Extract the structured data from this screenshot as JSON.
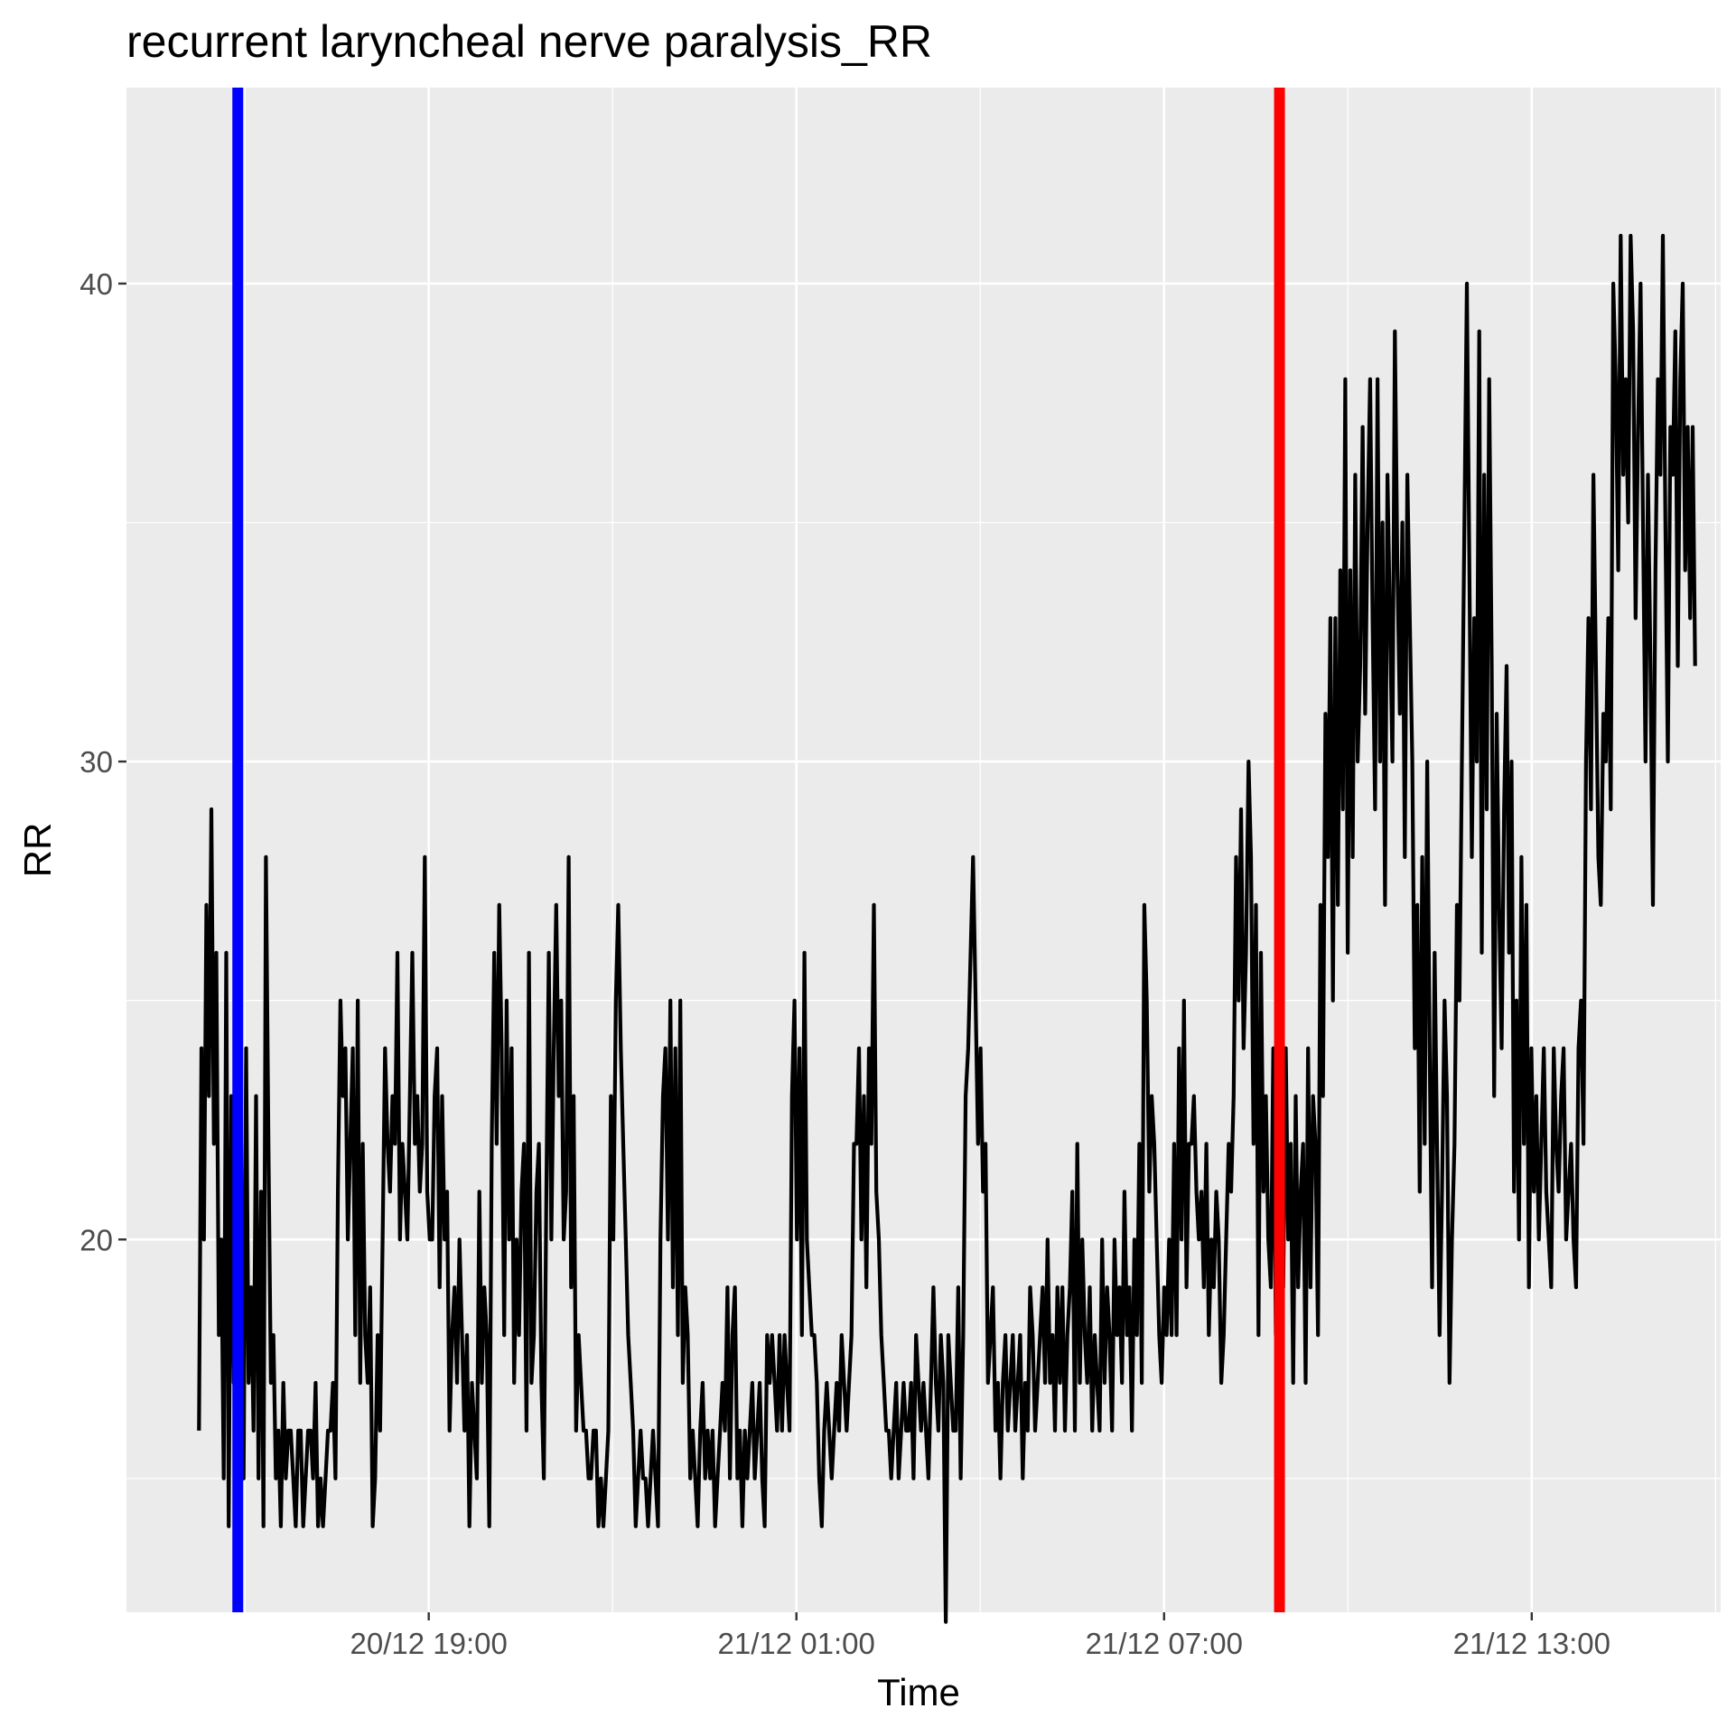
{
  "chart_data": {
    "type": "line",
    "title": "recurrent laryncheal nerve paralysis_RR",
    "xlabel": "Time",
    "ylabel": "RR",
    "x_axis": {
      "ticks": [
        "20/12 19:00",
        "21/12 01:00",
        "21/12 07:00",
        "21/12 13:00"
      ],
      "range": [
        "20/12 14:04",
        "21/12 16:05"
      ]
    },
    "y_axis": {
      "ticks": [
        20,
        30,
        40
      ],
      "range": [
        12.2,
        44.1
      ]
    },
    "grid": true,
    "background": "#ebebeb",
    "series": [
      {
        "color": "#000000",
        "x_start": "20/12 15:15",
        "x_end": "21/12 15:40",
        "y": [
          16,
          24,
          20,
          27,
          23,
          29,
          22,
          26,
          18,
          20,
          15,
          26,
          14,
          23,
          17,
          24,
          16,
          22,
          15,
          24,
          17,
          19,
          16,
          23,
          15,
          21,
          14,
          28,
          22,
          17,
          18,
          15,
          16,
          14,
          17,
          15,
          16,
          16,
          15,
          14,
          16,
          16,
          14,
          15,
          16,
          16,
          15,
          17,
          14,
          15,
          14,
          15,
          16,
          16,
          17,
          15,
          21,
          25,
          23,
          24,
          20,
          22,
          24,
          18,
          25,
          17,
          22,
          18,
          17,
          19,
          14,
          15,
          18,
          16,
          20,
          24,
          22,
          21,
          23,
          22,
          26,
          20,
          22,
          21,
          20,
          23,
          26,
          22,
          23,
          21,
          22,
          28,
          21,
          20,
          20,
          23,
          24,
          19,
          23,
          20,
          21,
          16,
          18,
          19,
          17,
          20,
          18,
          16,
          18,
          14,
          17,
          16,
          15,
          21,
          17,
          19,
          18,
          14,
          22,
          26,
          22,
          27,
          24,
          18,
          25,
          20,
          24,
          17,
          20,
          18,
          21,
          22,
          16,
          26,
          17,
          18,
          21,
          22,
          17,
          15,
          21,
          26,
          20,
          24,
          27,
          23,
          25,
          20,
          21,
          28,
          19,
          23,
          16,
          18,
          17,
          16,
          16,
          15,
          15,
          16,
          16,
          14,
          15,
          14,
          15,
          16,
          23,
          20,
          25,
          27,
          24,
          22,
          20,
          18,
          17,
          16,
          14,
          15,
          16,
          15,
          15,
          14,
          15,
          16,
          15,
          14,
          20,
          23,
          24,
          20,
          25,
          19,
          24,
          18,
          25,
          17,
          19,
          18,
          15,
          16,
          15,
          14,
          16,
          17,
          15,
          16,
          15,
          16,
          14,
          15,
          16,
          17,
          16,
          19,
          15,
          18,
          19,
          15,
          16,
          14,
          16,
          15,
          16,
          17,
          15,
          16,
          17,
          15,
          14,
          18,
          17,
          18,
          17,
          16,
          18,
          16,
          18,
          17,
          16,
          23,
          25,
          20,
          24,
          18,
          26,
          20,
          19,
          18,
          18,
          17,
          15,
          14,
          16,
          17,
          16,
          15,
          16,
          17,
          16,
          18,
          17,
          16,
          17,
          18,
          22,
          22,
          24,
          20,
          23,
          19,
          24,
          22,
          27,
          21,
          20,
          18,
          17,
          16,
          16,
          15,
          16,
          17,
          15,
          16,
          17,
          16,
          16,
          17,
          15,
          18,
          17,
          16,
          17,
          16,
          15,
          17,
          19,
          17,
          16,
          18,
          17,
          12,
          18,
          17,
          16,
          16,
          19,
          15,
          18,
          23,
          24,
          26,
          28,
          25,
          22,
          24,
          21,
          22,
          17,
          18,
          19,
          16,
          17,
          15,
          17,
          18,
          16,
          17,
          18,
          16,
          17,
          18,
          15,
          17,
          16,
          19,
          18,
          16,
          17,
          18,
          19,
          17,
          20,
          17,
          18,
          16,
          19,
          17,
          19,
          16,
          18,
          19,
          21,
          16,
          22,
          17,
          20,
          18,
          17,
          19,
          16,
          18,
          17,
          16,
          20,
          17,
          19,
          18,
          16,
          20,
          18,
          19,
          17,
          21,
          18,
          19,
          16,
          20,
          18,
          22,
          17,
          27,
          25,
          21,
          23,
          22,
          20,
          18,
          17,
          19,
          18,
          20,
          18,
          22,
          18,
          24,
          20,
          25,
          19,
          22,
          22,
          23,
          21,
          20,
          21,
          19,
          22,
          18,
          20,
          19,
          21,
          20,
          17,
          18,
          20,
          22,
          21,
          23,
          28,
          25,
          29,
          24,
          26,
          30,
          28,
          22,
          27,
          18,
          26,
          21,
          23,
          20,
          19,
          24,
          18,
          22,
          21,
          19,
          24,
          20,
          22,
          17,
          23,
          19,
          21,
          22,
          17,
          24,
          19,
          23,
          22,
          18,
          27,
          23,
          31,
          28,
          33,
          25,
          33,
          27,
          34,
          29,
          38,
          26,
          34,
          28,
          36,
          30,
          32,
          37,
          31,
          35,
          38,
          33,
          29,
          38,
          30,
          35,
          27,
          36,
          33,
          30,
          39,
          34,
          31,
          35,
          28,
          36,
          33,
          30,
          24,
          27,
          21,
          28,
          22,
          30,
          24,
          19,
          26,
          22,
          18,
          21,
          25,
          23,
          17,
          20,
          22,
          27,
          25,
          30,
          35,
          40,
          34,
          28,
          33,
          30,
          39,
          26,
          36,
          29,
          38,
          32,
          23,
          31,
          27,
          24,
          29,
          32,
          26,
          30,
          21,
          25,
          20,
          28,
          22,
          27,
          19,
          24,
          21,
          23,
          20,
          22,
          24,
          21,
          20,
          19,
          24,
          22,
          21,
          23,
          24,
          20,
          21,
          22,
          20,
          19,
          24,
          25,
          22,
          30,
          33,
          29,
          36,
          32,
          28,
          27,
          31,
          30,
          33,
          29,
          40,
          38,
          34,
          41,
          36,
          38,
          35,
          41,
          39,
          33,
          37,
          40,
          35,
          30,
          36,
          32,
          27,
          34,
          38,
          36,
          41,
          35,
          30,
          37,
          36,
          39,
          32,
          38,
          40,
          34,
          37,
          33,
          37,
          32
        ],
        "tooltip": ""
      }
    ],
    "markers": [
      {
        "color": "#0000ff",
        "x": "20/12 15:53"
      },
      {
        "color": "#ff0000",
        "x": "21/12 08:53"
      }
    ]
  }
}
